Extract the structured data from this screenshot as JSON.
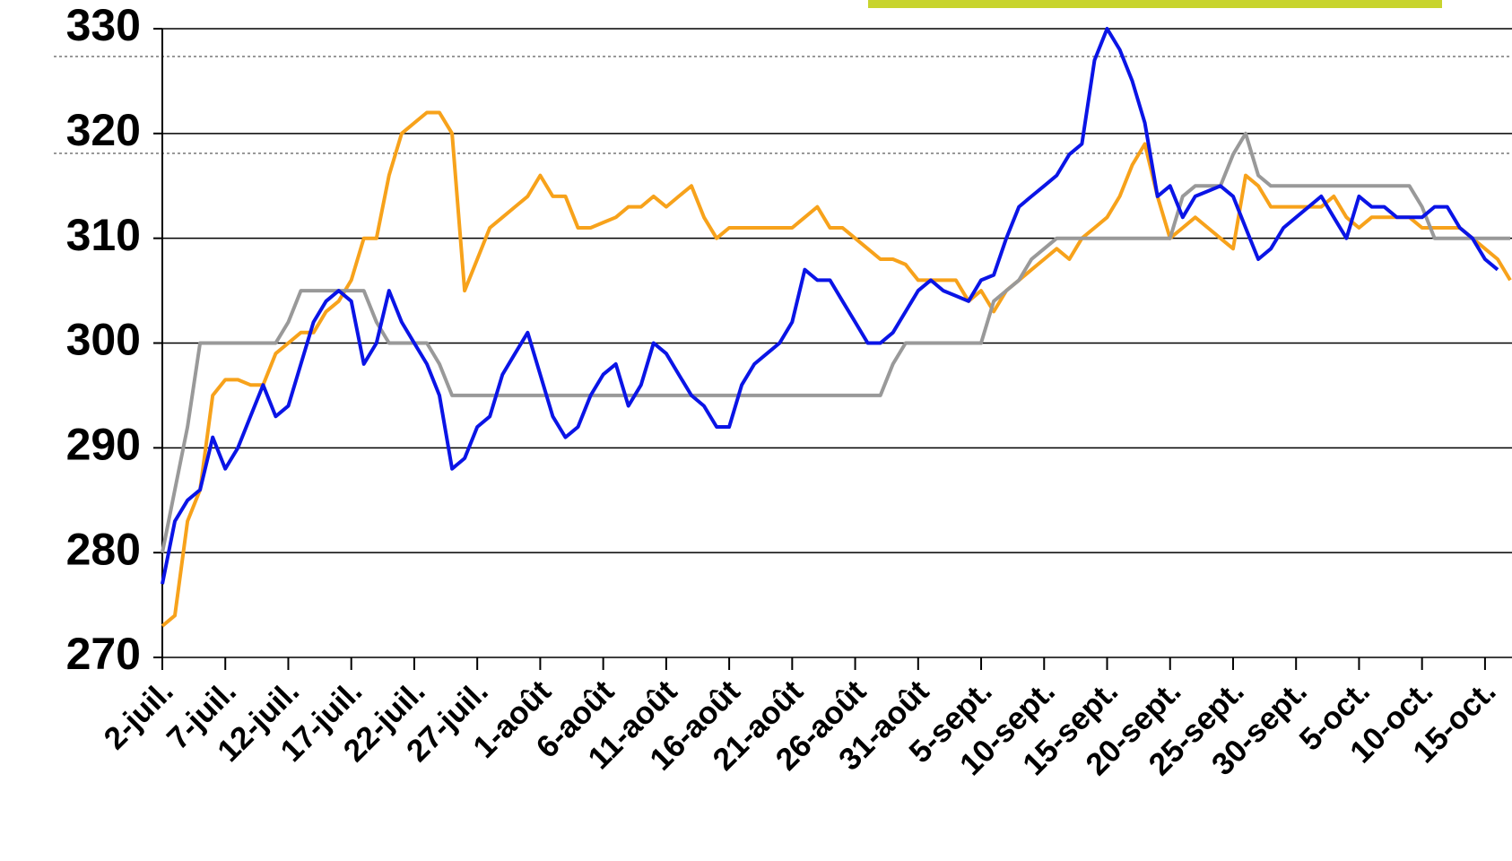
{
  "chart_data": {
    "type": "line",
    "categories": [
      "2-juil.",
      null,
      null,
      null,
      null,
      "7-juil.",
      null,
      null,
      null,
      null,
      "12-juil.",
      null,
      null,
      null,
      null,
      "17-juil.",
      null,
      null,
      null,
      null,
      "22-juil.",
      null,
      null,
      null,
      null,
      "27-juil.",
      null,
      null,
      null,
      null,
      "1-août",
      null,
      null,
      null,
      null,
      "6-août",
      null,
      null,
      null,
      null,
      "11-août",
      null,
      null,
      null,
      null,
      "16-août",
      null,
      null,
      null,
      null,
      "21-août",
      null,
      null,
      null,
      null,
      "26-août",
      null,
      null,
      null,
      null,
      "31-août",
      null,
      null,
      null,
      null,
      "5-sept.",
      null,
      null,
      null,
      null,
      "10-sept.",
      null,
      null,
      null,
      null,
      "15-sept.",
      null,
      null,
      null,
      null,
      "20-sept.",
      null,
      null,
      null,
      null,
      "25-sept.",
      null,
      null,
      null,
      null,
      "30-sept.",
      null,
      null,
      null,
      null,
      "5-oct.",
      null,
      null,
      null,
      null,
      "10-oct.",
      null,
      null,
      null,
      null,
      "15-oct.",
      null,
      null
    ],
    "series": [
      {
        "color": "#f7a21b",
        "values": [
          273,
          274,
          283,
          286,
          295,
          296.5,
          296.5,
          296,
          296,
          299,
          300,
          301,
          301,
          303,
          304,
          306,
          310,
          310,
          316,
          320,
          321,
          322,
          322,
          320,
          305,
          308,
          311,
          312,
          313,
          314,
          316,
          314,
          314,
          311,
          311,
          311.5,
          312,
          313,
          313,
          314,
          313,
          314,
          315,
          312,
          310,
          311,
          311,
          311,
          311,
          311,
          311,
          312,
          313,
          311,
          311,
          310,
          309,
          308,
          308,
          307.5,
          306,
          306,
          306,
          306,
          304,
          305,
          303,
          305,
          306,
          307,
          308,
          309,
          308,
          310,
          311,
          312,
          314,
          317,
          319,
          314,
          310,
          311,
          312,
          311,
          310,
          309,
          316,
          315,
          313,
          313,
          313,
          313,
          313,
          314,
          312,
          311,
          312,
          312,
          312,
          312,
          311,
          311,
          311,
          311,
          310,
          309,
          308,
          306
        ]
      },
      {
        "color": "#999999",
        "values": [
          280,
          286,
          292,
          300,
          300,
          300,
          300,
          300,
          300,
          300,
          302,
          305,
          305,
          305,
          305,
          305,
          305,
          302,
          300,
          300,
          300,
          300,
          298,
          295,
          295,
          295,
          295,
          295,
          295,
          295,
          295,
          295,
          295,
          295,
          295,
          295,
          295,
          295,
          295,
          295,
          295,
          295,
          295,
          295,
          295,
          295,
          295,
          295,
          295,
          295,
          295,
          295,
          295,
          295,
          295,
          295,
          295,
          295,
          298,
          300,
          300,
          300,
          300,
          300,
          300,
          300,
          304,
          305,
          306,
          308,
          309,
          310,
          310,
          310,
          310,
          310,
          310,
          310,
          310,
          310,
          310,
          314,
          315,
          315,
          315,
          318,
          320,
          316,
          315,
          315,
          315,
          315,
          315,
          315,
          315,
          315,
          315,
          315,
          315,
          315,
          313,
          310,
          310,
          310,
          310,
          310,
          310,
          310
        ]
      },
      {
        "color": "#0a14e6",
        "values": [
          277,
          283,
          285,
          286,
          291,
          288,
          290,
          293,
          296,
          293,
          294,
          298,
          302,
          304,
          305,
          304,
          298,
          300,
          305,
          302,
          300,
          298,
          295,
          288,
          289,
          292,
          293,
          297,
          299,
          301,
          297,
          293,
          291,
          292,
          295,
          297,
          298,
          294,
          296,
          300,
          299,
          297,
          295,
          294,
          292,
          292,
          296,
          298,
          299,
          300,
          302,
          307,
          306,
          306,
          304,
          302,
          300,
          300,
          301,
          303,
          305,
          306,
          305,
          304.5,
          304,
          306,
          306.5,
          310,
          313,
          314,
          315,
          316,
          318,
          319,
          327,
          330,
          328,
          325,
          321,
          314,
          315,
          312,
          314,
          314.5,
          315,
          314,
          311,
          308,
          309,
          311,
          312,
          313,
          314,
          312,
          310,
          314,
          313,
          313,
          312,
          312,
          312,
          313,
          313,
          311,
          310,
          308,
          307,
          null
        ]
      }
    ],
    "ylim": [
      270,
      330
    ],
    "yticks": [
      270,
      280,
      290,
      300,
      310,
      320,
      330
    ],
    "grid": true
  }
}
